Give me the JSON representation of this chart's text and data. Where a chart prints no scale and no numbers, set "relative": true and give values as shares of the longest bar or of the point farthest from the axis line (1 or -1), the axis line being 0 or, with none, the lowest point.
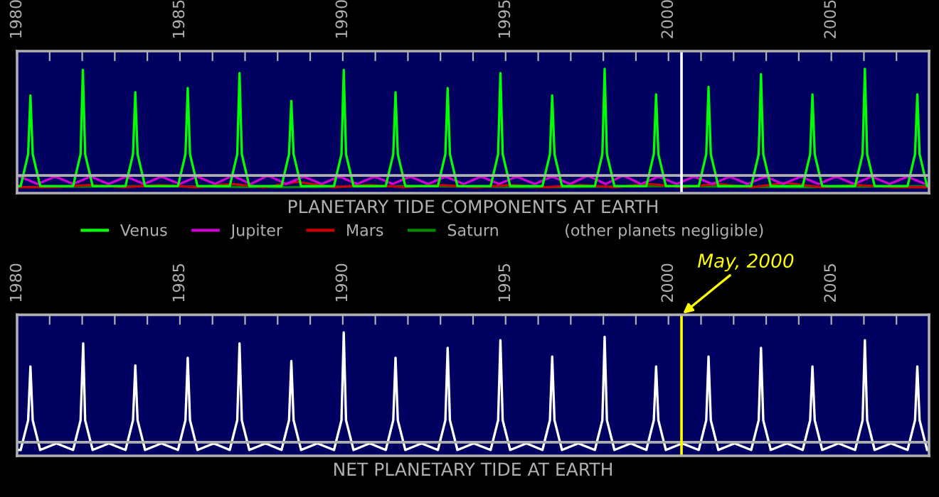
{
  "chart_data": [
    {
      "type": "line",
      "title": "PLANETARY TIDE COMPONENTS AT EARTH",
      "relative": true,
      "tick_labels": "x",
      "legend": "bottom",
      "line_style": "solid",
      "xlim": [
        1980,
        2008
      ],
      "xticks": [
        1980,
        {
          "value": 1981,
          "label": null
        },
        {
          "value": 1982,
          "label": null
        },
        {
          "value": 1983,
          "label": null
        },
        {
          "value": 1984,
          "label": null
        },
        1985,
        {
          "value": 1986,
          "label": null
        },
        {
          "value": 1987,
          "label": null
        },
        {
          "value": 1988,
          "label": null
        },
        {
          "value": 1989,
          "label": null
        },
        1990,
        {
          "value": 1991,
          "label": null
        },
        {
          "value": 1992,
          "label": null
        },
        {
          "value": 1993,
          "label": null
        },
        {
          "value": 1994,
          "label": null
        },
        1995,
        {
          "value": 1996,
          "label": null
        },
        {
          "value": 1997,
          "label": null
        },
        {
          "value": 1998,
          "label": null
        },
        {
          "value": 1999,
          "label": null
        },
        2000,
        {
          "value": 2001,
          "label": null
        },
        {
          "value": 2002,
          "label": null
        },
        {
          "value": 2003,
          "label": null
        },
        {
          "value": 2004,
          "label": null
        },
        2005,
        {
          "value": 2006,
          "label": null
        },
        {
          "value": 2007,
          "label": null
        },
        {
          "value": 2008,
          "label": null
        }
      ],
      "ref_lines": [
        {
          "axis": "x",
          "value": 2000.4,
          "color": "#ffffff"
        }
      ],
      "annotations": [
        "(other planets negligible)"
      ],
      "series": [
        {
          "name": "Saturn",
          "color": "#008800",
          "x": [
            1980.0,
            1984.0,
            1988.0,
            1992.0,
            1996.0,
            2000.0,
            2004.0,
            2008.0
          ],
          "values": [
            -0.11,
            -0.1,
            -0.11,
            -0.1,
            -0.11,
            -0.1,
            -0.11,
            -0.1
          ]
        },
        {
          "name": "Mars",
          "color": "#cc0000",
          "x": [
            1980.0,
            1981.1,
            1982.2,
            1983.3,
            1984.4,
            1985.5,
            1986.6,
            1987.6,
            1988.6,
            1989.7,
            1990.8,
            1991.9,
            1993.0,
            1994.1,
            1995.2,
            1996.25,
            1997.3,
            1998.35,
            1999.4,
            2000.45,
            2001.5,
            2002.55,
            2003.6,
            2004.7,
            2005.8,
            2006.9,
            2008.0
          ],
          "values": [
            -0.11,
            -0.11,
            -0.09,
            -0.11,
            -0.09,
            -0.11,
            -0.08,
            -0.11,
            -0.06,
            -0.11,
            -0.09,
            -0.11,
            -0.09,
            -0.11,
            -0.09,
            -0.11,
            -0.09,
            -0.11,
            -0.08,
            -0.11,
            -0.08,
            -0.11,
            -0.07,
            -0.11,
            -0.09,
            -0.11,
            -0.11
          ]
        },
        {
          "name": "Jupiter",
          "color": "#cc00cc",
          "x": [
            1980.08,
            1980.63,
            1981.17,
            1981.72,
            1982.26,
            1982.81,
            1983.35,
            1983.9,
            1984.44,
            1984.99,
            1985.53,
            1986.08,
            1986.62,
            1987.17,
            1987.71,
            1988.26,
            1988.8,
            1989.35,
            1989.89,
            1990.44,
            1990.98,
            1991.53,
            1992.07,
            1992.62,
            1993.16,
            1993.71,
            1994.25,
            1994.8,
            1995.34,
            1995.89,
            1996.43,
            1996.98,
            1997.52,
            1998.07,
            1998.61,
            1999.16,
            1999.7,
            2000.25,
            2000.79,
            2001.34,
            2001.88,
            2002.43,
            2002.97,
            2003.52,
            2004.06,
            2004.61,
            2005.15,
            2005.7,
            2006.24,
            2006.79,
            2007.33,
            2007.88
          ],
          "values": [
            -0.01,
            -0.08,
            -0.01,
            -0.08,
            -0.01,
            -0.08,
            -0.01,
            -0.08,
            -0.01,
            -0.08,
            -0.01,
            -0.08,
            0.0,
            -0.08,
            0.0,
            -0.08,
            -0.01,
            -0.08,
            -0.01,
            -0.08,
            -0.01,
            -0.08,
            -0.01,
            -0.08,
            -0.01,
            -0.08,
            -0.01,
            -0.08,
            -0.01,
            -0.08,
            -0.01,
            -0.08,
            0.0,
            -0.08,
            0.0,
            -0.08,
            -0.01,
            -0.08,
            -0.01,
            -0.08,
            -0.01,
            -0.08,
            -0.01,
            -0.08,
            -0.01,
            -0.08,
            -0.01,
            -0.08,
            -0.01,
            -0.08,
            -0.01,
            -0.08
          ]
        },
        {
          "name": "Venus",
          "color": "#00ff00",
          "x": [
            1980.0,
            1980.11,
            1980.34,
            1980.41,
            1980.48,
            1980.71,
            1981.72,
            1981.95,
            1982.02,
            1982.09,
            1982.32,
            1983.33,
            1983.56,
            1983.63,
            1983.7,
            1983.93,
            1984.94,
            1985.17,
            1985.24,
            1985.31,
            1985.54,
            1986.53,
            1986.76,
            1986.83,
            1986.9,
            1987.13,
            1988.12,
            1988.35,
            1988.42,
            1988.49,
            1988.72,
            1989.73,
            1989.96,
            1990.03,
            1990.1,
            1990.33,
            1991.32,
            1991.55,
            1991.62,
            1991.69,
            1991.92,
            1992.92,
            1993.15,
            1993.22,
            1993.29,
            1993.52,
            1994.54,
            1994.77,
            1994.84,
            1994.91,
            1995.14,
            1996.13,
            1996.36,
            1996.43,
            1996.5,
            1996.73,
            1997.74,
            1997.97,
            1998.04,
            1998.11,
            1998.34,
            1999.32,
            1999.55,
            1999.62,
            1999.69,
            1999.92,
            2000.93,
            2001.16,
            2001.23,
            2001.3,
            2001.53,
            2002.54,
            2002.77,
            2002.84,
            2002.91,
            2003.14,
            2004.12,
            2004.35,
            2004.42,
            2004.49,
            2004.72,
            2005.73,
            2005.96,
            2006.03,
            2006.1,
            2006.33,
            2007.34,
            2007.57,
            2007.64,
            2007.71,
            2007.94,
            2008.0
          ],
          "values": [
            -0.1,
            -0.1,
            0.2,
            0.75,
            0.2,
            -0.1,
            -0.1,
            0.2,
            0.99,
            0.2,
            -0.1,
            -0.1,
            0.2,
            0.78,
            0.2,
            -0.1,
            -0.1,
            0.2,
            0.82,
            0.2,
            -0.1,
            -0.1,
            0.2,
            0.96,
            0.2,
            -0.1,
            -0.1,
            0.2,
            0.7,
            0.2,
            -0.1,
            -0.1,
            0.2,
            0.99,
            0.2,
            -0.1,
            -0.1,
            0.2,
            0.78,
            0.2,
            -0.1,
            -0.1,
            0.2,
            0.82,
            0.2,
            -0.1,
            -0.1,
            0.2,
            0.96,
            0.2,
            -0.1,
            -0.1,
            0.2,
            0.75,
            0.2,
            -0.1,
            -0.1,
            0.2,
            1.0,
            0.2,
            -0.1,
            -0.1,
            0.2,
            0.76,
            0.2,
            -0.1,
            -0.1,
            0.2,
            0.83,
            0.2,
            -0.1,
            -0.1,
            0.2,
            0.95,
            0.2,
            -0.1,
            -0.1,
            0.2,
            0.76,
            0.2,
            -0.1,
            -0.1,
            0.2,
            1.0,
            0.2,
            -0.1,
            -0.1,
            0.2,
            0.76,
            0.2,
            -0.1,
            -0.1
          ]
        }
      ]
    },
    {
      "type": "line",
      "title": "NET PLANETARY TIDE AT EARTH",
      "relative": true,
      "tick_labels": "x",
      "line_style": "solid",
      "xlim": [
        1980,
        2008
      ],
      "xticks": [
        1980,
        {
          "value": 1981,
          "label": null
        },
        {
          "value": 1982,
          "label": null
        },
        {
          "value": 1983,
          "label": null
        },
        {
          "value": 1984,
          "label": null
        },
        1985,
        {
          "value": 1986,
          "label": null
        },
        {
          "value": 1987,
          "label": null
        },
        {
          "value": 1988,
          "label": null
        },
        {
          "value": 1989,
          "label": null
        },
        1990,
        {
          "value": 1991,
          "label": null
        },
        {
          "value": 1992,
          "label": null
        },
        {
          "value": 1993,
          "label": null
        },
        {
          "value": 1994,
          "label": null
        },
        1995,
        {
          "value": 1996,
          "label": null
        },
        {
          "value": 1997,
          "label": null
        },
        {
          "value": 1998,
          "label": null
        },
        {
          "value": 1999,
          "label": null
        },
        2000,
        {
          "value": 2001,
          "label": null
        },
        {
          "value": 2002,
          "label": null
        },
        {
          "value": 2003,
          "label": null
        },
        {
          "value": 2004,
          "label": null
        },
        2005,
        {
          "value": 2006,
          "label": null
        },
        {
          "value": 2007,
          "label": null
        },
        {
          "value": 2008,
          "label": null
        }
      ],
      "ref_lines": [
        {
          "axis": "x",
          "value": 2000.4,
          "label": "May, 2000",
          "color": "#ffff00"
        }
      ],
      "series": [
        {
          "color": "#ffffff",
          "x": [
            1980.0,
            1980.11,
            1980.34,
            1980.41,
            1980.48,
            1980.71,
            1981.21,
            1981.72,
            1981.95,
            1982.03,
            1982.09,
            1982.32,
            1982.82,
            1983.33,
            1983.56,
            1983.63,
            1983.7,
            1983.93,
            1984.43,
            1984.94,
            1985.17,
            1985.24,
            1985.31,
            1985.54,
            1986.04,
            1986.53,
            1986.76,
            1986.83,
            1986.9,
            1987.13,
            1987.63,
            1988.12,
            1988.35,
            1988.42,
            1988.49,
            1988.72,
            1989.22,
            1989.73,
            1989.96,
            1990.03,
            1990.1,
            1990.33,
            1990.83,
            1991.32,
            1991.55,
            1991.62,
            1991.69,
            1991.92,
            1992.42,
            1992.92,
            1993.15,
            1993.22,
            1993.29,
            1993.52,
            1994.02,
            1994.54,
            1994.77,
            1994.84,
            1994.91,
            1995.14,
            1995.64,
            1996.13,
            1996.36,
            1996.43,
            1996.5,
            1996.73,
            1997.23,
            1997.74,
            1997.97,
            1998.04,
            1998.11,
            1998.34,
            1998.84,
            1999.32,
            1999.55,
            1999.62,
            1999.69,
            1999.92,
            2000.42,
            2000.93,
            2001.16,
            2001.23,
            2001.3,
            2001.53,
            2002.03,
            2002.54,
            2002.77,
            2002.84,
            2002.91,
            2003.14,
            2003.64,
            2004.12,
            2004.35,
            2004.42,
            2004.49,
            2004.72,
            2005.22,
            2005.73,
            2005.96,
            2006.03,
            2006.1,
            2006.33,
            2006.83,
            2007.34,
            2007.57,
            2007.64,
            2007.71,
            2007.94,
            2008.0
          ],
          "values": [
            -0.07,
            -0.07,
            0.2,
            0.69,
            0.2,
            -0.07,
            -0.01,
            -0.07,
            0.2,
            0.9,
            0.2,
            -0.07,
            -0.01,
            -0.07,
            0.2,
            0.7,
            0.2,
            -0.07,
            -0.01,
            -0.07,
            0.2,
            0.77,
            0.2,
            -0.07,
            -0.01,
            -0.07,
            0.2,
            0.9,
            0.2,
            -0.07,
            -0.01,
            -0.07,
            0.2,
            0.74,
            0.2,
            -0.07,
            -0.01,
            -0.07,
            0.2,
            1.0,
            0.2,
            -0.07,
            -0.01,
            -0.07,
            0.2,
            0.77,
            0.2,
            -0.07,
            -0.01,
            -0.07,
            0.2,
            0.86,
            0.2,
            -0.07,
            -0.01,
            -0.07,
            0.2,
            0.93,
            0.2,
            -0.07,
            -0.01,
            -0.07,
            0.2,
            0.78,
            0.2,
            -0.07,
            -0.01,
            -0.07,
            0.2,
            0.96,
            0.2,
            -0.07,
            -0.01,
            -0.07,
            0.2,
            0.69,
            0.2,
            -0.07,
            -0.01,
            -0.07,
            0.2,
            0.78,
            0.2,
            -0.07,
            -0.01,
            -0.07,
            0.2,
            0.86,
            0.2,
            -0.07,
            -0.01,
            -0.07,
            0.2,
            0.69,
            0.2,
            -0.07,
            -0.01,
            -0.07,
            0.2,
            0.93,
            0.2,
            -0.07,
            -0.01,
            -0.07,
            0.2,
            0.69,
            0.2,
            -0.07,
            -0.07
          ]
        }
      ]
    }
  ]
}
